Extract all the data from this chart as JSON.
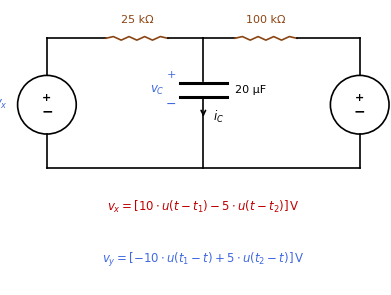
{
  "bg_color": "#ffffff",
  "wire_color": "#000000",
  "resistor_color": "#8B4513",
  "label_blue": "#4169E1",
  "label_red": "#C00000",
  "resistor1_label": "25 kΩ",
  "resistor2_label": "100 kΩ",
  "cap_label": "20 μF",
  "fig_w": 3.91,
  "fig_h": 2.95,
  "dpi": 100
}
